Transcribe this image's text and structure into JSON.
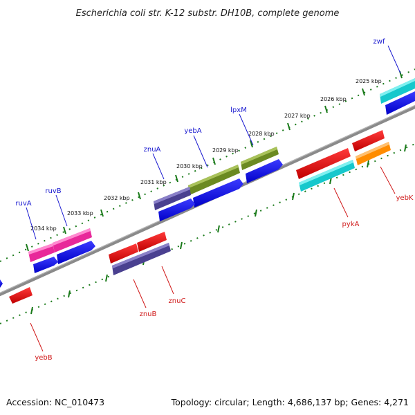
{
  "title": "Escherichia coli str. K-12 substr. DH10B, complete genome",
  "footer": {
    "accession": "Accession: NC_010473",
    "topology": "Topology: circular; Length: 4,686,137 bp; Genes: 4,271"
  },
  "scale_labels": [
    "2025 kbp",
    "2026 kbp",
    "2027 kbp",
    "2028 kbp",
    "2029 kbp",
    "2030 kbp",
    "2031 kbp",
    "2032 kbp",
    "2033 kbp",
    "2034 kbp"
  ],
  "genes_top": [
    {
      "name": "zwf",
      "color": "#1a1ad0"
    },
    {
      "name": "lpxM",
      "color": "#1a1ad0"
    },
    {
      "name": "yebA",
      "color": "#1a1ad0"
    },
    {
      "name": "znuA",
      "color": "#1a1ad0"
    },
    {
      "name": "ruvB",
      "color": "#1a1ad0"
    },
    {
      "name": "ruvA",
      "color": "#1a1ad0"
    }
  ],
  "genes_bottom": [
    {
      "name": "yebK",
      "color": "#d01a1a"
    },
    {
      "name": "pykA",
      "color": "#d01a1a"
    },
    {
      "name": "znuC",
      "color": "#d01a1a"
    },
    {
      "name": "znuB",
      "color": "#d01a1a"
    },
    {
      "name": "yebB",
      "color": "#d01a1a"
    }
  ],
  "colors": {
    "forward_cds": "#0a0af0",
    "reverse_cds": "#ee1111",
    "backbone": "#8a8a8a",
    "ticks": "#1a7a1a"
  }
}
